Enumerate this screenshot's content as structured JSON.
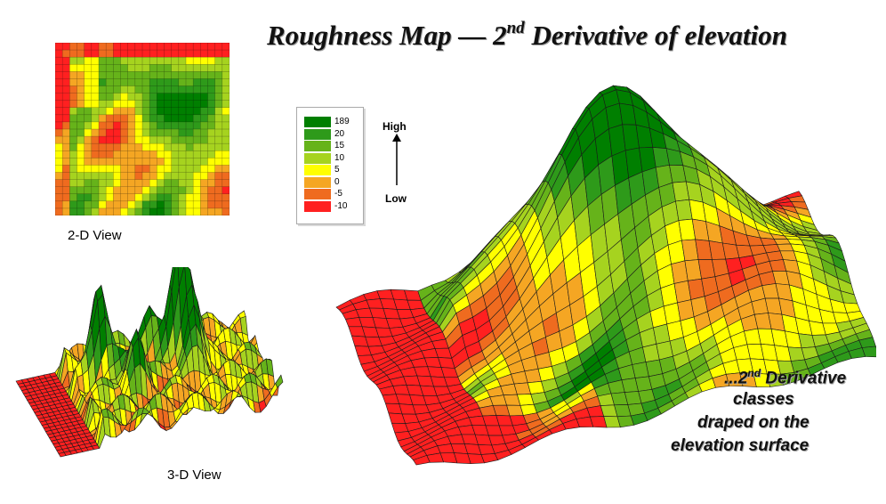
{
  "title": {
    "prefix": "Roughness Map — 2",
    "superscript": "nd",
    "suffix": " Derivative of elevation"
  },
  "views": {
    "two_d_label": "2-D View",
    "three_d_label": "3-D View"
  },
  "legend": {
    "items": [
      {
        "label": "189",
        "color": "#007f00"
      },
      {
        "label": "20",
        "color": "#2e9a1a"
      },
      {
        "label": "15",
        "color": "#66b31a"
      },
      {
        "label": "10",
        "color": "#a6d31f"
      },
      {
        "label": "5",
        "color": "#ffff00"
      },
      {
        "label": "0",
        "color": "#f5a623"
      },
      {
        "label": "-5",
        "color": "#ef6b1f"
      },
      {
        "label": "-10",
        "color": "#ff2020"
      }
    ],
    "high_label": "High",
    "low_label": "Low"
  },
  "caption": {
    "line1_prefix": "...2",
    "line1_superscript": "nd",
    "line1_suffix": " Derivative",
    "line2": "classes",
    "line3": "draped on the",
    "line4": "elevation surface"
  }
}
